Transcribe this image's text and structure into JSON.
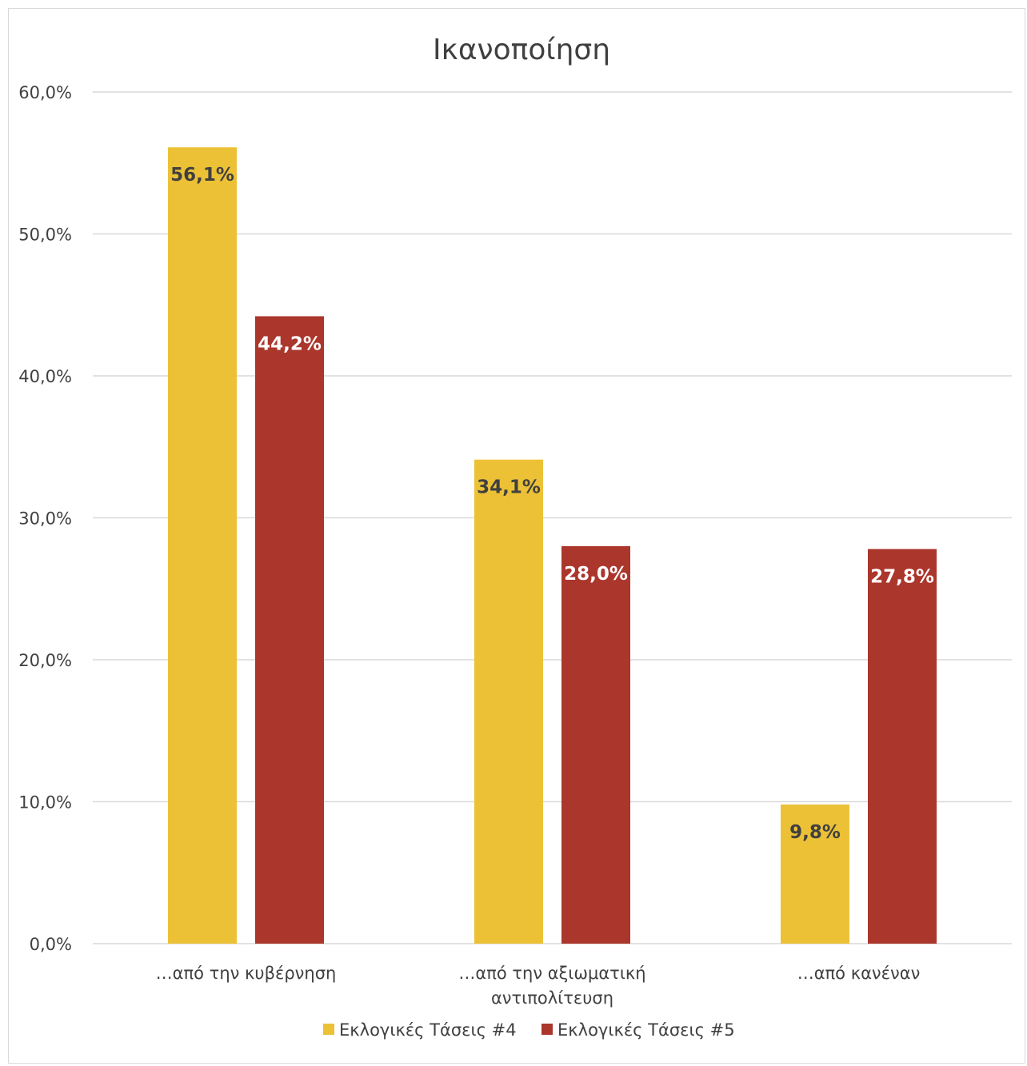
{
  "chart_data": {
    "type": "bar",
    "title": "Ικανοποίηση",
    "categories": [
      [
        "…από την κυβέρνηση"
      ],
      [
        "…από την αξιωματική",
        "αντιπολίτευση"
      ],
      [
        "…από κανέναν"
      ]
    ],
    "series": [
      {
        "name": "Εκλογικές Τάσεις #4",
        "color": "#ecc136",
        "label_color": "#404040",
        "values": [
          56.1,
          34.1,
          9.8
        ],
        "labels": [
          "56,1%",
          "34,1%",
          "9,8%"
        ]
      },
      {
        "name": "Εκλογικές Τάσεις #5",
        "color": "#ab362c",
        "label_color": "#ffffff",
        "values": [
          44.2,
          28.0,
          27.8
        ],
        "labels": [
          "44,2%",
          "28,0%",
          "27,8%"
        ]
      }
    ],
    "ylim": [
      0,
      60
    ],
    "yticks": [
      0,
      10,
      20,
      30,
      40,
      50,
      60
    ],
    "ytick_labels": [
      "0,0%",
      "10,0%",
      "20,0%",
      "30,0%",
      "40,0%",
      "50,0%",
      "60,0%"
    ],
    "grid": true,
    "legend": "bottom"
  }
}
